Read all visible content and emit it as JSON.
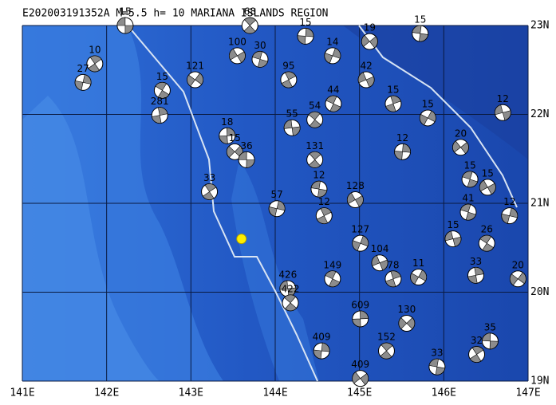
{
  "map": {
    "title": "E202003191352A M=5.5 h= 10 MARIANA ISLANDS REGION",
    "lonlim": [
      141,
      147
    ],
    "latlim": [
      19,
      23
    ],
    "xticks": [
      {
        "value": 141,
        "label": "141E"
      },
      {
        "value": 142,
        "label": "142E"
      },
      {
        "value": 143,
        "label": "143E"
      },
      {
        "value": 144,
        "label": "144E"
      },
      {
        "value": 145,
        "label": "145E"
      },
      {
        "value": 146,
        "label": "146E"
      },
      {
        "value": 147,
        "label": "147E"
      }
    ],
    "yticks": [
      {
        "value": 23,
        "label": "23N"
      },
      {
        "value": 22,
        "label": "22N"
      },
      {
        "value": 21,
        "label": "21N"
      },
      {
        "value": 20,
        "label": "20N"
      },
      {
        "value": 19,
        "label": "19N"
      }
    ],
    "epicenter": {
      "lon": 143.6,
      "lat": 20.6,
      "color": "#ffee00"
    },
    "events": [
      {
        "lon": 142.22,
        "lat": 23.0,
        "depth": 15
      },
      {
        "lon": 143.7,
        "lat": 23.0,
        "depth": 68
      },
      {
        "lon": 144.36,
        "lat": 22.88,
        "depth": 15
      },
      {
        "lon": 145.12,
        "lat": 22.82,
        "depth": 19
      },
      {
        "lon": 145.72,
        "lat": 22.91,
        "depth": 15
      },
      {
        "lon": 141.86,
        "lat": 22.57,
        "depth": 10
      },
      {
        "lon": 141.72,
        "lat": 22.36,
        "depth": 27
      },
      {
        "lon": 143.55,
        "lat": 22.66,
        "depth": 100
      },
      {
        "lon": 143.82,
        "lat": 22.62,
        "depth": 30
      },
      {
        "lon": 144.16,
        "lat": 22.39,
        "depth": 95
      },
      {
        "lon": 144.68,
        "lat": 22.66,
        "depth": 14
      },
      {
        "lon": 145.08,
        "lat": 22.39,
        "depth": 42
      },
      {
        "lon": 144.69,
        "lat": 22.12,
        "depth": 44
      },
      {
        "lon": 145.4,
        "lat": 22.12,
        "depth": 15
      },
      {
        "lon": 145.81,
        "lat": 21.96,
        "depth": 15
      },
      {
        "lon": 146.7,
        "lat": 22.02,
        "depth": 12
      },
      {
        "lon": 142.66,
        "lat": 22.27,
        "depth": 15
      },
      {
        "lon": 142.63,
        "lat": 21.99,
        "depth": 281
      },
      {
        "lon": 143.05,
        "lat": 22.39,
        "depth": 121
      },
      {
        "lon": 144.2,
        "lat": 21.85,
        "depth": 55
      },
      {
        "lon": 144.47,
        "lat": 21.94,
        "depth": 54
      },
      {
        "lon": 143.43,
        "lat": 21.76,
        "depth": 18
      },
      {
        "lon": 143.52,
        "lat": 21.58,
        "depth": 15
      },
      {
        "lon": 143.66,
        "lat": 21.49,
        "depth": 36
      },
      {
        "lon": 144.47,
        "lat": 21.49,
        "depth": 131
      },
      {
        "lon": 145.51,
        "lat": 21.58,
        "depth": 12
      },
      {
        "lon": 146.2,
        "lat": 21.63,
        "depth": 20
      },
      {
        "lon": 144.52,
        "lat": 21.16,
        "depth": 12
      },
      {
        "lon": 143.22,
        "lat": 21.13,
        "depth": 33
      },
      {
        "lon": 144.02,
        "lat": 20.94,
        "depth": 57
      },
      {
        "lon": 144.95,
        "lat": 21.04,
        "depth": 128
      },
      {
        "lon": 146.29,
        "lat": 20.9,
        "depth": 41
      },
      {
        "lon": 144.58,
        "lat": 20.86,
        "depth": 12
      },
      {
        "lon": 145.01,
        "lat": 20.55,
        "depth": 127
      },
      {
        "lon": 145.24,
        "lat": 20.33,
        "depth": 104
      },
      {
        "lon": 144.68,
        "lat": 20.15,
        "depth": 149
      },
      {
        "lon": 145.4,
        "lat": 20.15,
        "depth": 78
      },
      {
        "lon": 145.7,
        "lat": 20.17,
        "depth": 11
      },
      {
        "lon": 146.11,
        "lat": 20.6,
        "depth": 15
      },
      {
        "lon": 146.51,
        "lat": 20.55,
        "depth": 26
      },
      {
        "lon": 146.38,
        "lat": 20.19,
        "depth": 33
      },
      {
        "lon": 146.88,
        "lat": 20.15,
        "depth": 20
      },
      {
        "lon": 144.15,
        "lat": 20.04,
        "depth": 426
      },
      {
        "lon": 144.18,
        "lat": 19.88,
        "depth": 422
      },
      {
        "lon": 145.01,
        "lat": 19.7,
        "depth": 609
      },
      {
        "lon": 145.56,
        "lat": 19.65,
        "depth": 130
      },
      {
        "lon": 146.55,
        "lat": 19.45,
        "depth": 35
      },
      {
        "lon": 145.32,
        "lat": 19.34,
        "depth": 152
      },
      {
        "lon": 144.55,
        "lat": 19.34,
        "depth": 409
      },
      {
        "lon": 145.01,
        "lat": 19.03,
        "depth": 409
      },
      {
        "lon": 145.92,
        "lat": 19.16,
        "depth": 33
      },
      {
        "lon": 146.39,
        "lat": 19.3,
        "depth": 32
      },
      {
        "lon": 146.78,
        "lat": 20.86,
        "depth": 12
      },
      {
        "lon": 146.52,
        "lat": 21.18,
        "depth": 15
      },
      {
        "lon": 146.31,
        "lat": 21.27,
        "depth": 15
      }
    ]
  }
}
